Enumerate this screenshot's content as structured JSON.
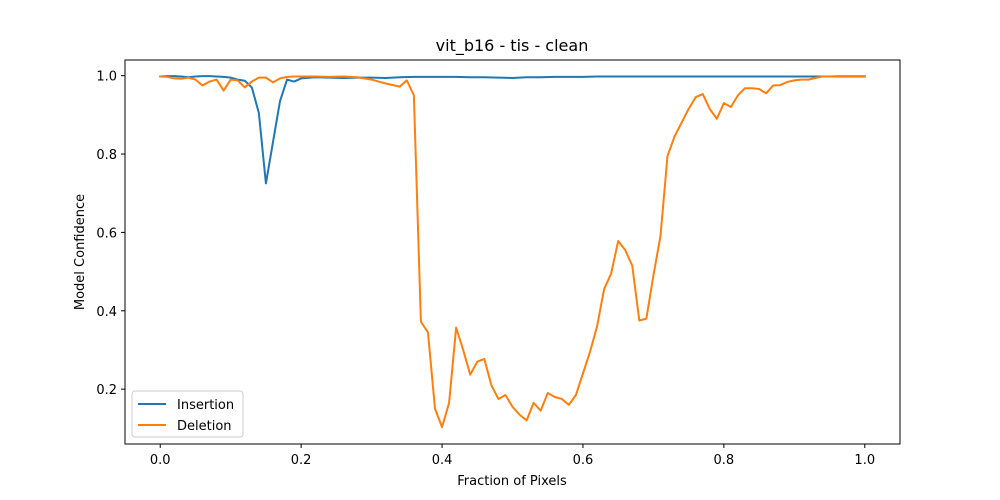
{
  "chart_data": {
    "type": "line",
    "title": "vit_b16 - tis - clean",
    "xlabel": "Fraction of Pixels",
    "ylabel": "Model Confidence",
    "xlim": [
      -0.05,
      1.05
    ],
    "ylim": [
      0.06,
      1.04
    ],
    "xticks": [
      0.0,
      0.2,
      0.4,
      0.6,
      0.8,
      1.0
    ],
    "xtick_labels": [
      "0.0",
      "0.2",
      "0.4",
      "0.6",
      "0.8",
      "1.0"
    ],
    "yticks": [
      0.2,
      0.4,
      0.6,
      0.8,
      1.0
    ],
    "ytick_labels": [
      "0.2",
      "0.4",
      "0.6",
      "0.8",
      "1.0"
    ],
    "grid": false,
    "legend": {
      "position": "lower-left"
    },
    "series": [
      {
        "name": "Insertion",
        "color": "#1f77b4",
        "x": [
          0.0,
          0.01,
          0.02,
          0.03,
          0.04,
          0.05,
          0.06,
          0.07,
          0.08,
          0.09,
          0.1,
          0.11,
          0.12,
          0.13,
          0.14,
          0.15,
          0.16,
          0.17,
          0.18,
          0.19,
          0.2,
          0.22,
          0.24,
          0.26,
          0.28,
          0.3,
          0.32,
          0.34,
          0.36,
          0.38,
          0.4,
          0.42,
          0.44,
          0.46,
          0.48,
          0.5,
          0.52,
          0.54,
          0.56,
          0.58,
          0.6,
          0.62,
          0.64,
          0.66,
          0.68,
          0.7,
          0.75,
          0.8,
          0.85,
          0.9,
          0.95,
          1.0
        ],
        "y": [
          0.998,
          0.999,
          0.999,
          0.998,
          0.996,
          0.998,
          0.999,
          0.999,
          0.998,
          0.997,
          0.995,
          0.99,
          0.987,
          0.97,
          0.905,
          0.725,
          0.83,
          0.935,
          0.99,
          0.985,
          0.993,
          0.996,
          0.995,
          0.994,
          0.995,
          0.995,
          0.994,
          0.996,
          0.997,
          0.997,
          0.997,
          0.997,
          0.996,
          0.996,
          0.995,
          0.994,
          0.996,
          0.996,
          0.997,
          0.997,
          0.997,
          0.998,
          0.998,
          0.998,
          0.998,
          0.998,
          0.998,
          0.998,
          0.998,
          0.998,
          0.998,
          0.998
        ]
      },
      {
        "name": "Deletion",
        "color": "#ff7f0e",
        "x": [
          0.0,
          0.01,
          0.02,
          0.03,
          0.04,
          0.05,
          0.06,
          0.07,
          0.08,
          0.09,
          0.1,
          0.11,
          0.12,
          0.13,
          0.14,
          0.15,
          0.16,
          0.17,
          0.18,
          0.19,
          0.2,
          0.22,
          0.24,
          0.26,
          0.28,
          0.3,
          0.32,
          0.34,
          0.35,
          0.36,
          0.37,
          0.38,
          0.39,
          0.4,
          0.41,
          0.42,
          0.43,
          0.44,
          0.45,
          0.46,
          0.47,
          0.48,
          0.49,
          0.5,
          0.51,
          0.52,
          0.53,
          0.54,
          0.55,
          0.56,
          0.57,
          0.58,
          0.59,
          0.6,
          0.61,
          0.62,
          0.63,
          0.64,
          0.65,
          0.66,
          0.67,
          0.68,
          0.69,
          0.7,
          0.71,
          0.72,
          0.73,
          0.74,
          0.75,
          0.76,
          0.77,
          0.78,
          0.79,
          0.8,
          0.81,
          0.82,
          0.83,
          0.84,
          0.85,
          0.86,
          0.87,
          0.88,
          0.89,
          0.9,
          0.91,
          0.92,
          0.93,
          0.94,
          0.95,
          0.96,
          0.97,
          0.98,
          0.99,
          1.0
        ],
        "y": [
          0.998,
          0.997,
          0.993,
          0.992,
          0.995,
          0.99,
          0.975,
          0.985,
          0.99,
          0.962,
          0.99,
          0.988,
          0.97,
          0.985,
          0.995,
          0.995,
          0.983,
          0.993,
          0.997,
          0.998,
          0.998,
          0.998,
          0.997,
          0.998,
          0.996,
          0.99,
          0.98,
          0.972,
          0.988,
          0.95,
          0.372,
          0.345,
          0.15,
          0.103,
          0.165,
          0.357,
          0.3,
          0.237,
          0.27,
          0.277,
          0.21,
          0.175,
          0.185,
          0.155,
          0.135,
          0.12,
          0.165,
          0.145,
          0.19,
          0.18,
          0.175,
          0.16,
          0.185,
          0.24,
          0.295,
          0.36,
          0.455,
          0.495,
          0.578,
          0.555,
          0.515,
          0.375,
          0.38,
          0.49,
          0.59,
          0.795,
          0.845,
          0.88,
          0.915,
          0.945,
          0.953,
          0.915,
          0.89,
          0.93,
          0.92,
          0.95,
          0.968,
          0.968,
          0.966,
          0.955,
          0.975,
          0.976,
          0.984,
          0.988,
          0.99,
          0.99,
          0.994,
          0.998,
          0.998,
          0.999,
          0.999,
          0.999,
          0.999,
          0.999
        ]
      }
    ]
  }
}
